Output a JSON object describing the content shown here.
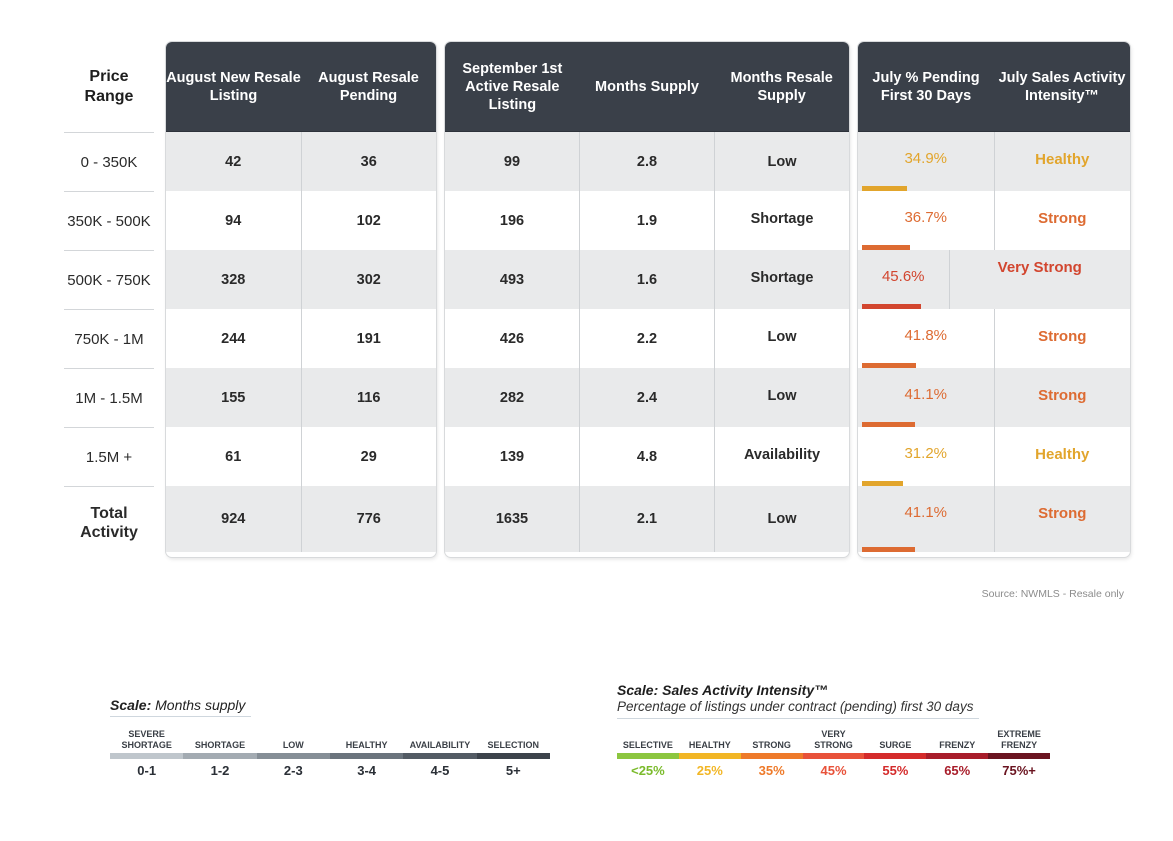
{
  "price_header": "Price Range",
  "price_ranges": [
    "0 - 350K",
    "350K - 500K",
    "500K - 750K",
    "750K - 1M",
    "1M - 1.5M",
    "1.5M +"
  ],
  "total_label": "Total Activity",
  "headers": {
    "aug_new": "August New Resale Listing",
    "aug_pending": "August Resale Pending",
    "sep_active": "September 1st Active Resale Listing",
    "months_supply": "Months Supply",
    "resale_supply": "Months Resale Supply",
    "pct_pending": "July % Pending First 30 Days",
    "intensity": "July Sales Activity Intensity™"
  },
  "rows": [
    {
      "aug_new": "42",
      "aug_pending": "36",
      "sep_active": "99",
      "months_supply": "2.8",
      "resale_supply": "Low",
      "pct_pending": "34.9%",
      "pct_value": 34.9,
      "intensity": "Healthy",
      "color": "#e2a52c"
    },
    {
      "aug_new": "94",
      "aug_pending": "102",
      "sep_active": "196",
      "months_supply": "1.9",
      "resale_supply": "Shortage",
      "pct_pending": "36.7%",
      "pct_value": 36.7,
      "intensity": "Strong",
      "color": "#dd6b32"
    },
    {
      "aug_new": "328",
      "aug_pending": "302",
      "sep_active": "493",
      "months_supply": "1.6",
      "resale_supply": "Shortage",
      "pct_pending": "45.6%",
      "pct_value": 45.6,
      "intensity": "Very Strong",
      "color": "#d2462f"
    },
    {
      "aug_new": "244",
      "aug_pending": "191",
      "sep_active": "426",
      "months_supply": "2.2",
      "resale_supply": "Low",
      "pct_pending": "41.8%",
      "pct_value": 41.8,
      "intensity": "Strong",
      "color": "#dd6b32"
    },
    {
      "aug_new": "155",
      "aug_pending": "116",
      "sep_active": "282",
      "months_supply": "2.4",
      "resale_supply": "Low",
      "pct_pending": "41.1%",
      "pct_value": 41.1,
      "intensity": "Strong",
      "color": "#dd6b32"
    },
    {
      "aug_new": "61",
      "aug_pending": "29",
      "sep_active": "139",
      "months_supply": "4.8",
      "resale_supply": "Availability",
      "pct_pending": "31.2%",
      "pct_value": 31.2,
      "intensity": "Healthy",
      "color": "#e2a52c"
    }
  ],
  "total": {
    "aug_new": "924",
    "aug_pending": "776",
    "sep_active": "1635",
    "months_supply": "2.1",
    "resale_supply": "Low",
    "pct_pending": "41.1%",
    "pct_value": 41.1,
    "intensity": "Strong",
    "color": "#dd6b32"
  },
  "source": "Source: NWMLS  -  Resale only",
  "scale_months": {
    "title_bold": "Scale:",
    "title_rest": "Months supply",
    "labels": [
      "SEVERE SHORTAGE",
      "SHORTAGE",
      "LOW",
      "HEALTHY",
      "AVAILABILITY",
      "SELECTION"
    ],
    "values": [
      "0-1",
      "1-2",
      "2-3",
      "3-4",
      "4-5",
      "5+"
    ],
    "colors": [
      "#bfc6cc",
      "#a3abb2",
      "#858e96",
      "#6b747d",
      "#535b64",
      "#3c434b"
    ]
  },
  "scale_intensity": {
    "title": "Scale: Sales Activity Intensity™",
    "subtitle": "Percentage of listings under contract (pending) first 30 days",
    "labels": [
      "SELECTIVE",
      "HEALTHY",
      "STRONG",
      "VERY STRONG",
      "SURGE",
      "FRENZY",
      "EXTREME FRENZY"
    ],
    "values": [
      "<25%",
      "25%",
      "35%",
      "45%",
      "55%",
      "65%",
      "75%+"
    ],
    "colors": [
      "#8cc63f",
      "#f2b625",
      "#ee7a2a",
      "#e8523a",
      "#d42b2b",
      "#a81d2a",
      "#6a1420"
    ]
  }
}
